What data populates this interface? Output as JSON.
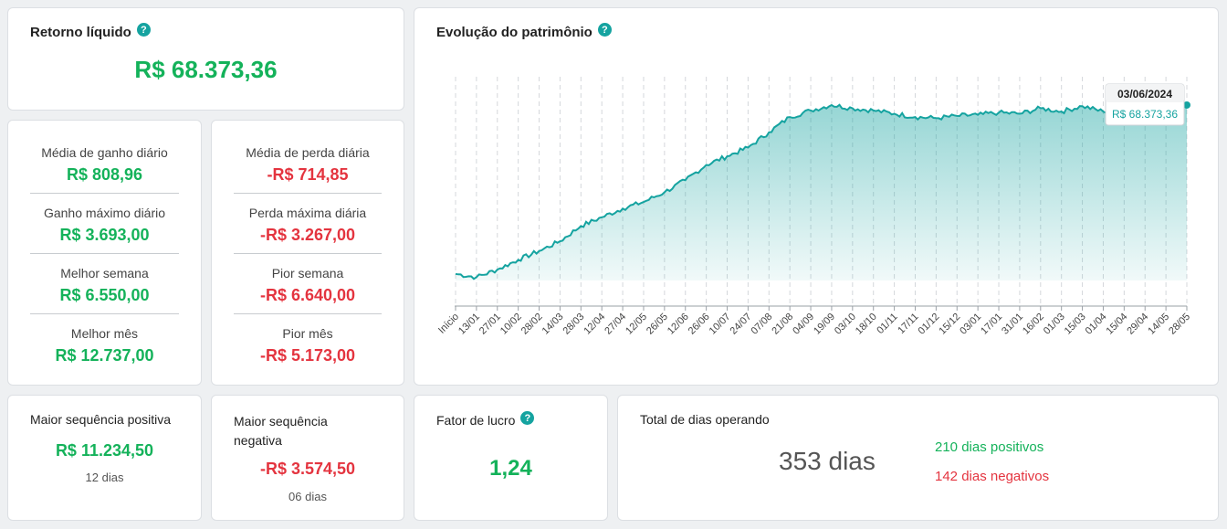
{
  "retorno": {
    "title": "Retorno líquido",
    "value": "R$ 68.373,36"
  },
  "gains": [
    {
      "label": "Média de ganho diário",
      "value": "R$ 808,96"
    },
    {
      "label": "Ganho máximo diário",
      "value": "R$ 3.693,00"
    },
    {
      "label": "Melhor semana",
      "value": "R$ 6.550,00"
    },
    {
      "label": "Melhor mês",
      "value": "R$ 12.737,00"
    }
  ],
  "losses": [
    {
      "label": "Média de perda diária",
      "value": "-R$ 714,85"
    },
    {
      "label": "Perda máxima diária",
      "value": "-R$ 3.267,00"
    },
    {
      "label": "Pior semana",
      "value": "-R$ 6.640,00"
    },
    {
      "label": "Pior mês",
      "value": "-R$ 5.173,00"
    }
  ],
  "seq_pos": {
    "title": "Maior sequência positiva",
    "value": "R$ 11.234,50",
    "days": "12 dias"
  },
  "seq_neg": {
    "title_line1": "Maior sequência",
    "title_line2": "negativa",
    "value": "-R$ 3.574,50",
    "days": "06 dias"
  },
  "fator": {
    "title": "Fator de lucro",
    "value": "1,24"
  },
  "dias": {
    "title": "Total de dias operando",
    "total": "353 dias",
    "positivos": "210 dias positivos",
    "negativos": "142 dias negativos"
  },
  "help_glyph": "?",
  "colors": {
    "green": "#14b25a",
    "red": "#e4343f",
    "teal": "#15a3a0"
  },
  "chart_data": {
    "type": "area",
    "title": "Evolução do patrimônio",
    "categories": [
      "Início",
      "13/01",
      "27/01",
      "10/02",
      "28/02",
      "14/03",
      "28/03",
      "12/04",
      "27/04",
      "12/05",
      "26/05",
      "12/06",
      "26/06",
      "10/07",
      "24/07",
      "07/08",
      "21/08",
      "04/09",
      "19/09",
      "03/10",
      "18/10",
      "01/11",
      "17/11",
      "01/12",
      "15/12",
      "03/01",
      "17/01",
      "31/01",
      "16/02",
      "01/03",
      "15/03",
      "01/04",
      "15/04",
      "29/04",
      "14/05",
      "28/05"
    ],
    "series": [
      {
        "values": [
          0,
          -1500,
          2000,
          6500,
          10500,
          15000,
          22000,
          26000,
          30000,
          33000,
          37500,
          43000,
          50000,
          54000,
          58000,
          65000,
          72000,
          75000,
          77500,
          76000,
          75000,
          73500,
          72000,
          71500,
          72500,
          73000,
          74000,
          73500,
          76000,
          74500,
          77000,
          74500,
          75500,
          77000,
          76500,
          77500
        ]
      }
    ],
    "tooltip": {
      "date": "03/06/2024",
      "value": "R$ 68.373,36"
    },
    "grid": "vertical-dashed",
    "area_color": "#15a3a0"
  }
}
